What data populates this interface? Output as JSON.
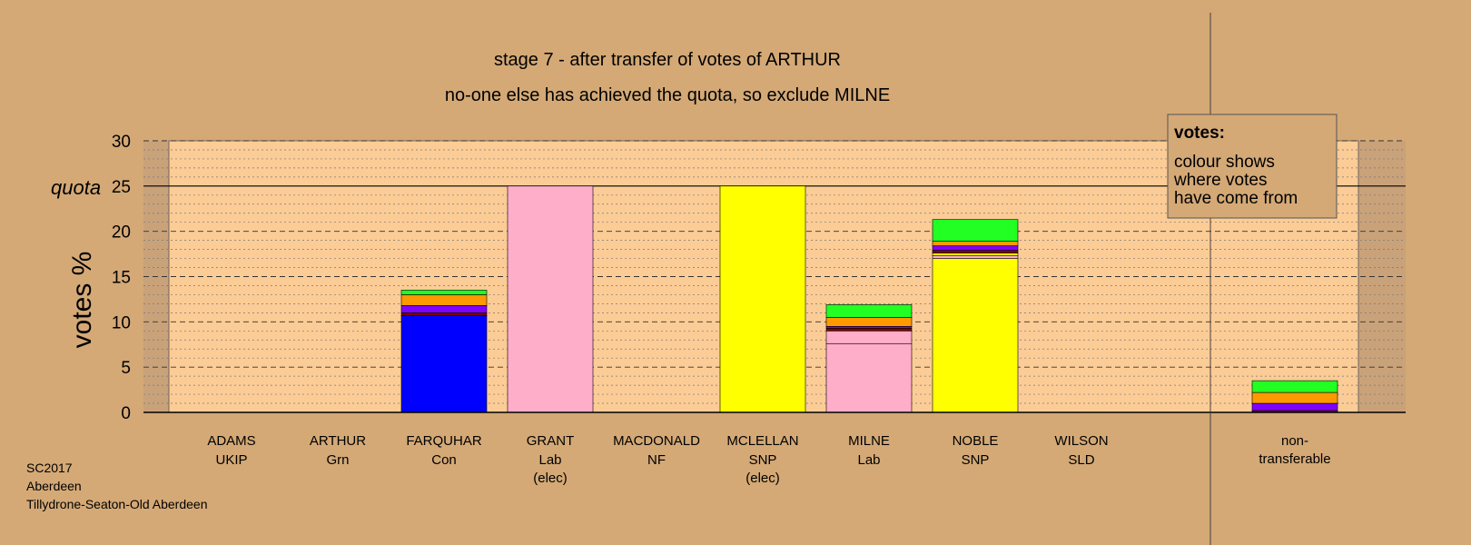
{
  "chart_data": {
    "type": "bar",
    "stacked": true,
    "title": "stage 7 - after transfer of votes of ARTHUR",
    "subtitle": "no-one else has achieved the quota, so exclude MILNE",
    "ylabel": "votes %",
    "ylim": [
      0,
      30
    ],
    "yticks": [
      "0",
      "5",
      "10",
      "15",
      "20",
      "25",
      "30"
    ],
    "quota": 25,
    "quota_label": "quota",
    "legend": {
      "title": "votes:",
      "lines": [
        "colour shows",
        "where votes",
        "have come from"
      ],
      "placement": "top-right"
    },
    "colors": {
      "background": "#d4a976",
      "plot_area": "#fccc96",
      "shaded_area": "#c9a27a",
      "UKIP": "#8000ff",
      "Grn": "#00c000",
      "Con": "#0000ff",
      "Lab": "#ffaec9",
      "NF": "#800000",
      "SNP": "#ffff00",
      "SLD": "#ff9900",
      "transfer_green": "#22ff22",
      "transfer_orange": "#ff9900",
      "transfer_purple": "#8000ff"
    },
    "candidates": [
      {
        "name": "ADAMS",
        "party": "UKIP",
        "note": "",
        "segments": []
      },
      {
        "name": "ARTHUR",
        "party": "Grn",
        "note": "",
        "segments": []
      },
      {
        "name": "FARQUHAR",
        "party": "Con",
        "note": "",
        "segments": [
          {
            "color": "#0000ff",
            "value": 10.7
          },
          {
            "color": "#800000",
            "value": 0.3
          },
          {
            "color": "#8000ff",
            "value": 0.8
          },
          {
            "color": "#ff9900",
            "value": 1.2
          },
          {
            "color": "#22ff22",
            "value": 0.5
          }
        ]
      },
      {
        "name": "GRANT",
        "party": "Lab",
        "note": "(elec)",
        "segments": [
          {
            "color": "#ffaec9",
            "value": 25.0
          }
        ]
      },
      {
        "name": "MACDONALD",
        "party": "NF",
        "note": "",
        "segments": []
      },
      {
        "name": "MCLELLAN",
        "party": "SNP",
        "note": "(elec)",
        "segments": [
          {
            "color": "#ffff00",
            "value": 25.0
          }
        ]
      },
      {
        "name": "MILNE",
        "party": "Lab",
        "note": "",
        "segments": [
          {
            "color": "#ffaec9",
            "value": 7.6
          },
          {
            "color": "#ffaec9",
            "value": 1.4
          },
          {
            "color": "#800000",
            "value": 0.3
          },
          {
            "color": "#8000ff",
            "value": 0.2
          },
          {
            "color": "#ff9900",
            "value": 1.0
          },
          {
            "color": "#22ff22",
            "value": 1.4
          }
        ]
      },
      {
        "name": "NOBLE",
        "party": "SNP",
        "note": "",
        "segments": [
          {
            "color": "#ffff00",
            "value": 17.0
          },
          {
            "color": "#ffaec9",
            "value": 0.3
          },
          {
            "color": "#ffff00",
            "value": 0.3
          },
          {
            "color": "#800000",
            "value": 0.3
          },
          {
            "color": "#8000ff",
            "value": 0.5
          },
          {
            "color": "#ff9900",
            "value": 0.5
          },
          {
            "color": "#22ff22",
            "value": 2.4
          }
        ]
      },
      {
        "name": "WILSON",
        "party": "SLD",
        "note": "",
        "segments": []
      }
    ],
    "nontransferable": {
      "label_lines": [
        "non-",
        "transferable"
      ],
      "segments": [
        {
          "color": "#800000",
          "value": 0.2
        },
        {
          "color": "#8000ff",
          "value": 0.8
        },
        {
          "color": "#ff9900",
          "value": 1.2
        },
        {
          "color": "#22ff22",
          "value": 1.3
        }
      ]
    }
  },
  "footer": {
    "line1": "SC2017",
    "line2": "Aberdeen",
    "line3": "Tillydrone-Seaton-Old Aberdeen"
  }
}
